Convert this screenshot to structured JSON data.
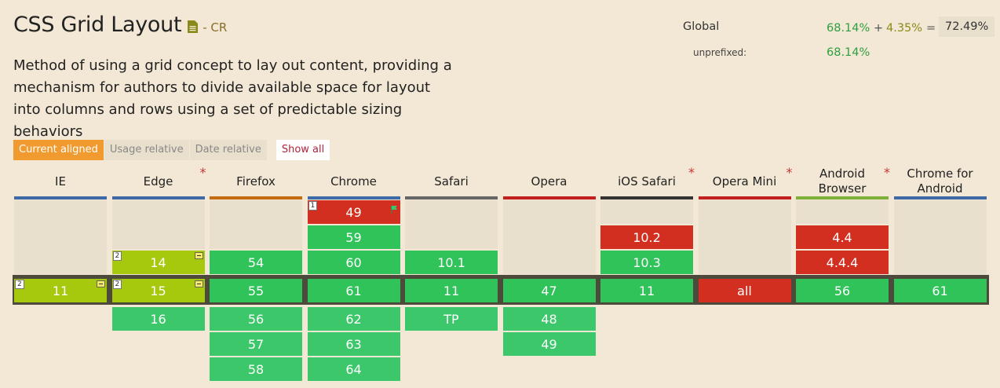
{
  "feature": {
    "title": "CSS Grid Layout",
    "doc_icon": "document-icon",
    "status": "- CR",
    "description": "Method of using a grid concept to lay out content, providing a mechanism for authors to divide available space for layout into columns and rows using a set of predictable sizing behaviors"
  },
  "stats": {
    "global_label": "Global",
    "full_pct": "68.14%",
    "plus": "+",
    "partial_pct": "4.35%",
    "equals": "=",
    "total_pct": "72.49%",
    "unprefixed_label": "unprefixed:",
    "unprefixed_pct": "68.14%"
  },
  "modes": {
    "current": "Current aligned",
    "usage": "Usage relative",
    "date": "Date relative",
    "show_all": "Show all"
  },
  "colors": {
    "supported": "#2fc35a",
    "partial": "#a7c90d",
    "unsupported": "#d32f20",
    "accent": "#f09a2f"
  },
  "browsers": [
    {
      "name": "IE",
      "star": "",
      "underline": "#3f6aa8",
      "past": [],
      "current": {
        "v": "11",
        "s": "p",
        "note": "2",
        "prefix": true
      },
      "future": []
    },
    {
      "name": "Edge",
      "star": "*",
      "underline": "#3f6aa8",
      "past": [
        {
          "v": "14",
          "s": "p",
          "note": "2",
          "prefix": true
        }
      ],
      "current": {
        "v": "15",
        "s": "p",
        "note": "2",
        "prefix": true
      },
      "future": [
        {
          "v": "16",
          "s": "y"
        }
      ]
    },
    {
      "name": "Firefox",
      "star": "",
      "underline": "#c56b12",
      "past": [
        {
          "v": "54",
          "s": "y"
        }
      ],
      "current": {
        "v": "55",
        "s": "y"
      },
      "future": [
        {
          "v": "56",
          "s": "y"
        },
        {
          "v": "57",
          "s": "y"
        },
        {
          "v": "58",
          "s": "y"
        }
      ]
    },
    {
      "name": "Chrome",
      "star": "",
      "underline": "#3f6aa8",
      "past": [
        {
          "v": "49",
          "s": "n",
          "note": "1",
          "flag": true
        },
        {
          "v": "59",
          "s": "y"
        },
        {
          "v": "60",
          "s": "y"
        }
      ],
      "current": {
        "v": "61",
        "s": "y"
      },
      "future": [
        {
          "v": "62",
          "s": "y"
        },
        {
          "v": "63",
          "s": "y"
        },
        {
          "v": "64",
          "s": "y"
        }
      ]
    },
    {
      "name": "Safari",
      "star": "",
      "underline": "#666666",
      "past": [
        {
          "v": "10.1",
          "s": "y"
        }
      ],
      "current": {
        "v": "11",
        "s": "y"
      },
      "future": [
        {
          "v": "TP",
          "s": "y"
        }
      ]
    },
    {
      "name": "Opera",
      "star": "",
      "underline": "#c21f1f",
      "past": [],
      "current": {
        "v": "47",
        "s": "y"
      },
      "future": [
        {
          "v": "48",
          "s": "y"
        },
        {
          "v": "49",
          "s": "y"
        }
      ]
    },
    {
      "name": "iOS Safari",
      "star": "*",
      "underline": "#333333",
      "past": [
        {
          "v": "10.2",
          "s": "n"
        },
        {
          "v": "10.3",
          "s": "y"
        }
      ],
      "current": {
        "v": "11",
        "s": "y"
      },
      "future": []
    },
    {
      "name": "Opera Mini",
      "star": "*",
      "underline": "#c21f1f",
      "past": [],
      "current": {
        "v": "all",
        "s": "n"
      },
      "future": []
    },
    {
      "name": "Android Browser",
      "star": "*",
      "underline": "#7fb03a",
      "past": [
        {
          "v": "4.4",
          "s": "n"
        },
        {
          "v": "4.4.4",
          "s": "n"
        }
      ],
      "current": {
        "v": "56",
        "s": "y"
      },
      "future": []
    },
    {
      "name": "Chrome for Android",
      "star": "",
      "underline": "#3f6aa8",
      "past": [],
      "current": {
        "v": "61",
        "s": "y"
      },
      "future": []
    }
  ]
}
